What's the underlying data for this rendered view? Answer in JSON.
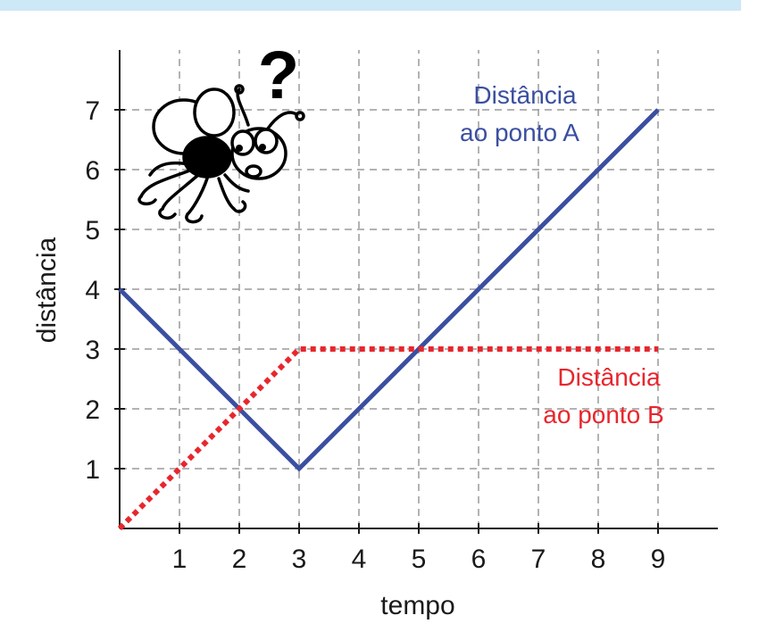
{
  "chart_data": {
    "type": "line",
    "title": "",
    "xlabel": "tempo",
    "ylabel": "distância",
    "xlim": [
      0,
      10
    ],
    "ylim": [
      0,
      8
    ],
    "x_ticks": [
      "1",
      "2",
      "3",
      "4",
      "5",
      "6",
      "7",
      "8",
      "9"
    ],
    "y_ticks": [
      "1",
      "2",
      "3",
      "4",
      "5",
      "6",
      "7"
    ],
    "grid": true,
    "series": [
      {
        "name": "Distância ao ponto A",
        "label_lines": [
          "Distância",
          "ao ponto A"
        ],
        "style": "solid",
        "color": "#3a4fa1",
        "x": [
          0,
          3,
          9
        ],
        "y": [
          4,
          1,
          7
        ]
      },
      {
        "name": "Distância ao ponto B",
        "label_lines": [
          "Distância",
          "ao ponto B"
        ],
        "style": "dotted",
        "color": "#e8262d",
        "x": [
          0,
          3,
          9
        ],
        "y": [
          0,
          3,
          3
        ]
      }
    ],
    "annotation_icon": "confused-ant-icon",
    "annotation_glyph": "?"
  }
}
